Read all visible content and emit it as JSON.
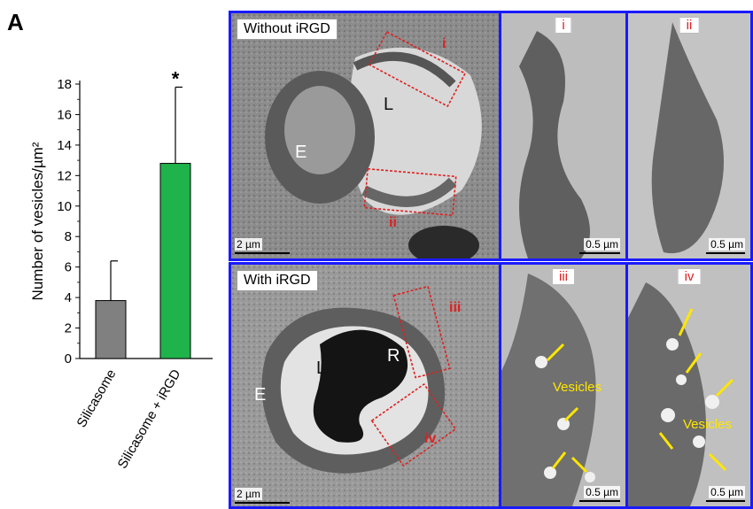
{
  "panel_letter": "A",
  "chart_data": {
    "type": "bar",
    "categories": [
      "Silicasome",
      "Silicasome + iRGD"
    ],
    "values": [
      3.8,
      12.8
    ],
    "error_plus": [
      2.6,
      5.0
    ],
    "ylabel": "Number of vesicles/µm²",
    "ylim": [
      0,
      18
    ],
    "yticks": [
      0,
      2,
      4,
      6,
      8,
      10,
      12,
      14,
      16,
      18
    ],
    "annotations": [
      "",
      "*"
    ],
    "colors": [
      "#808080",
      "#1fb34b"
    ],
    "grid": false
  },
  "top_row": {
    "label": "Without iRGD",
    "main_regions": [
      "L",
      "E"
    ],
    "region_markers": [
      "i",
      "ii"
    ],
    "main_scale": "2 µm",
    "zoom_i_tag": "i",
    "zoom_i_scale": "0.5 µm",
    "zoom_ii_tag": "ii",
    "zoom_ii_scale": "0.5 µm"
  },
  "bottom_row": {
    "label": "With iRGD",
    "main_regions": [
      "L",
      "R",
      "E"
    ],
    "region_markers": [
      "iii",
      "iv"
    ],
    "main_scale": "2 µm",
    "zoom_iii_tag": "iii",
    "zoom_iii_vesicles": "Vesicles",
    "zoom_iii_scale": "0.5 µm",
    "zoom_iv_tag": "iv",
    "zoom_iv_vesicles": "Vesicles",
    "zoom_iv_scale": "0.5 µm"
  },
  "colors": {
    "frame": "#1a1aff",
    "marker_red": "#e02020",
    "arrow_yellow": "#ffe600"
  }
}
